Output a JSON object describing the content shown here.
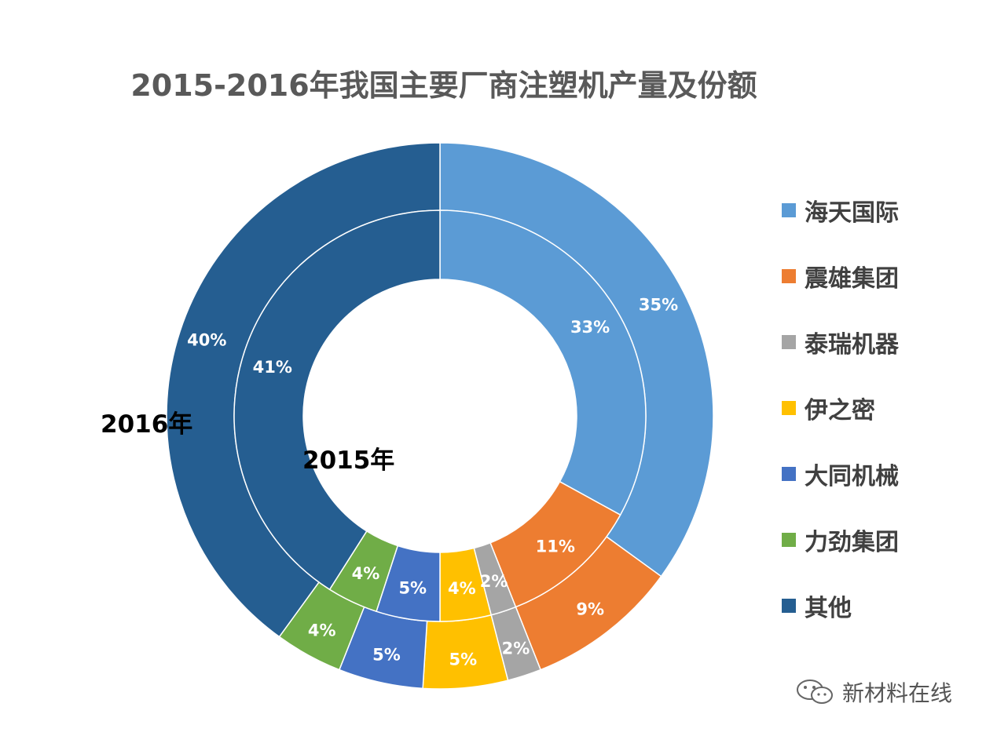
{
  "chart_data": {
    "type": "donut",
    "title": "2015-2016年我国主要厂商注塑机产量及份额",
    "categories": [
      "海天国际",
      "震雄集团",
      "泰瑞机器",
      "伊之密",
      "大同机械",
      "力劲集团",
      "其他"
    ],
    "series": [
      {
        "name": "2016年",
        "ring": "outer",
        "values": [
          35,
          9,
          2,
          5,
          5,
          4,
          40
        ],
        "labels": [
          "35%",
          "9%",
          "2%",
          "5%",
          "5%",
          "4%",
          "40%"
        ]
      },
      {
        "name": "2015年",
        "ring": "inner",
        "values": [
          33,
          11,
          2,
          4,
          5,
          4,
          41
        ],
        "labels": [
          "33%",
          "11%",
          "2%",
          "4%",
          "5%",
          "4%",
          "41%"
        ]
      }
    ],
    "colors": [
      "#5b9bd5",
      "#ed7d31",
      "#a5a5a5",
      "#ffc000",
      "#4472c4",
      "#70ad47",
      "#255e91"
    ],
    "legend_position": "right"
  },
  "watermark": {
    "text": "新材料在线",
    "icon": "wechat-icon"
  }
}
